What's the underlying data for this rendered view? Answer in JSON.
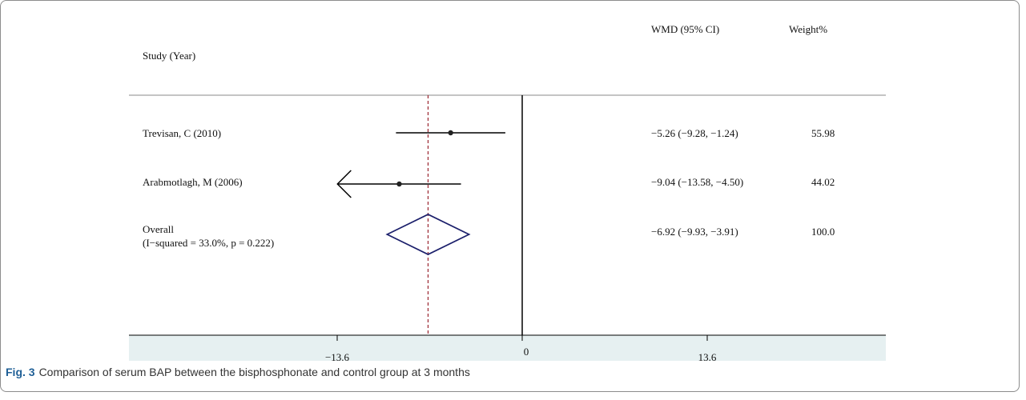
{
  "chart_data": {
    "type": "forest",
    "header": {
      "study": "Study   (Year)",
      "effect": "WMD (95% CI)",
      "weight": "Weight%"
    },
    "studies": [
      {
        "label": "Trevisan, C (2010)",
        "wmd": -5.26,
        "ci": [
          -9.28,
          -1.24
        ],
        "text": "−5.26 (−9.28, −1.24)",
        "weight": "55.98",
        "arrow_left": false
      },
      {
        "label": "Arabmotlagh, M (2006)",
        "wmd": -9.04,
        "ci": [
          -13.58,
          -4.5
        ],
        "text": "−9.04 (−13.58, −4.50)",
        "weight": "44.02",
        "arrow_left": true
      }
    ],
    "overall": {
      "label": "Overall",
      "sublabel": "(I−squared = 33.0%, p = 0.222)",
      "wmd": -6.92,
      "ci": [
        -9.93,
        -3.91
      ],
      "text": "−6.92 (−9.93, −3.91)",
      "weight": "100.0"
    },
    "xlim": [
      -13.6,
      13.6
    ],
    "ticks": [
      {
        "value": -13.6,
        "label": "−13.6"
      },
      {
        "value": 0,
        "label": "0"
      },
      {
        "value": 13.6,
        "label": "13.6"
      }
    ],
    "colors": {
      "diamond": "#1b1f6b",
      "overall_line": "#a0303a",
      "axis_band": "#e6f0f1"
    }
  },
  "caption": {
    "label": "Fig. 3",
    "text": "Comparison of serum BAP between the bisphosphonate and control group at 3 months"
  }
}
